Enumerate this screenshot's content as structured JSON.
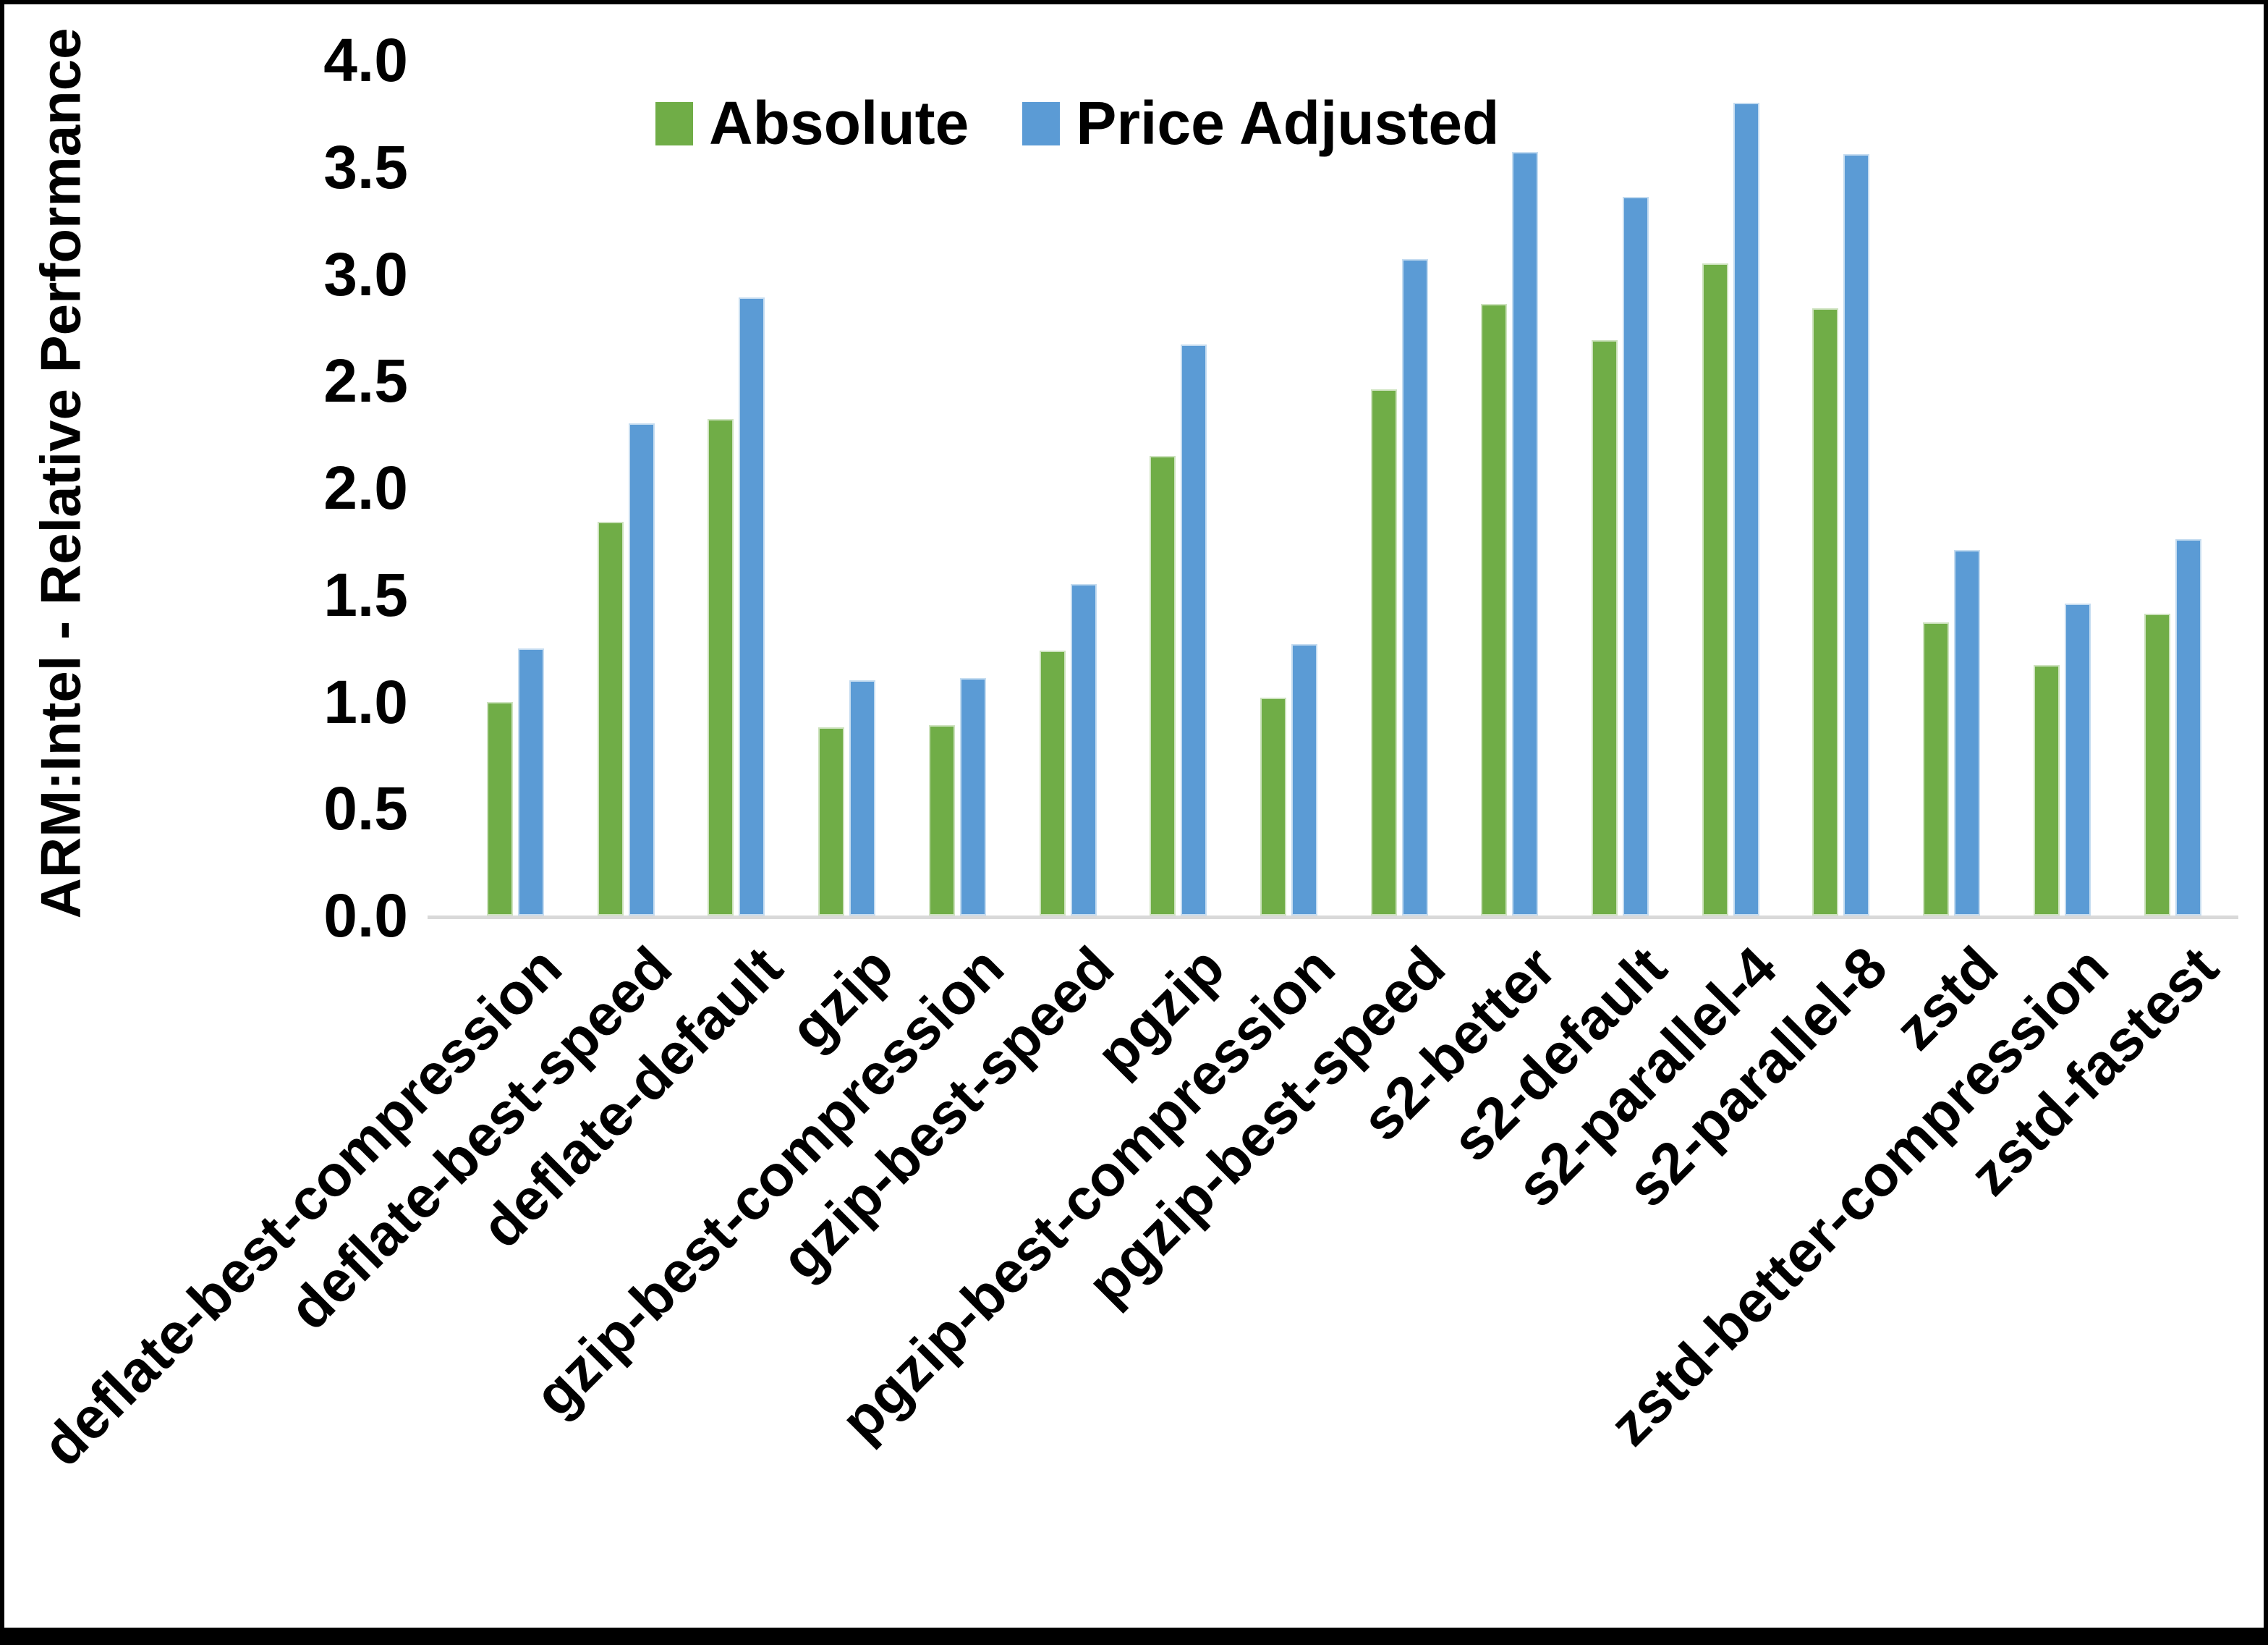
{
  "chart_data": {
    "type": "bar",
    "title": "",
    "xlabel": "",
    "ylabel": "ARM:Intel - Relative Performance",
    "ylim": [
      0.0,
      4.0
    ],
    "ytick_step": 0.5,
    "yticks": [
      "0.0",
      "0.5",
      "1.0",
      "1.5",
      "2.0",
      "2.5",
      "3.0",
      "3.5",
      "4.0"
    ],
    "grid": false,
    "legend_position": "top-center",
    "axis_line_color": "#d9d9d9",
    "categories": [
      "deflate-best-compression",
      "deflate-best-speed",
      "deflate-default",
      "gzip",
      "gzip-best-compression",
      "gzip-best-speed",
      "pgzip",
      "pgzip-best-compression",
      "pgzip-best-speed",
      "s2-better",
      "s2-default",
      "s2-parallel-4",
      "s2-parallel-8",
      "zstd",
      "zstd-better-compression",
      "zstd-fastest"
    ],
    "series": [
      {
        "name": "Absolute",
        "color": "#70AD47",
        "values": [
          1.0,
          1.84,
          2.32,
          0.88,
          0.89,
          1.24,
          2.15,
          1.02,
          2.46,
          2.86,
          2.69,
          3.05,
          2.84,
          1.37,
          1.17,
          1.41
        ]
      },
      {
        "name": "Price Adjusted",
        "color": "#5B9BD5",
        "values": [
          1.25,
          2.3,
          2.89,
          1.1,
          1.11,
          1.55,
          2.67,
          1.27,
          3.07,
          3.57,
          3.36,
          3.8,
          3.56,
          1.71,
          1.46,
          1.76
        ]
      }
    ]
  }
}
